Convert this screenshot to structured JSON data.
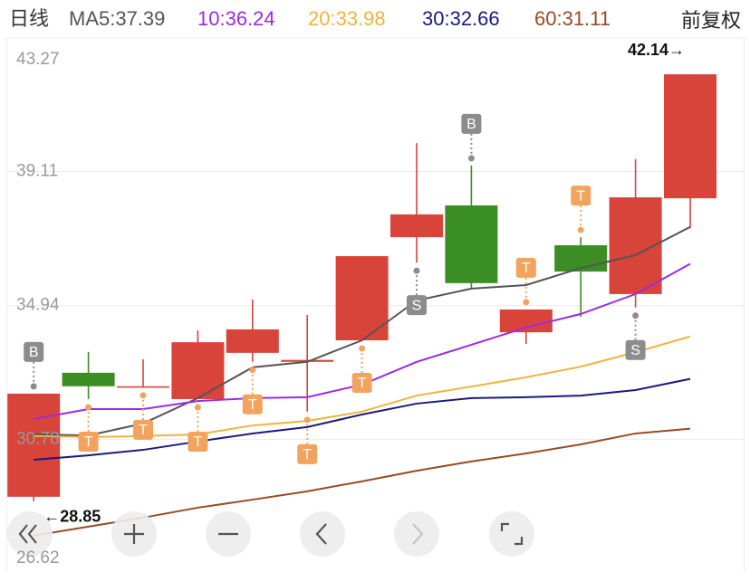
{
  "header": {
    "period": "日线",
    "adjust": "前复权"
  },
  "chart_data": {
    "type": "candlestick",
    "categories": [
      null,
      null,
      null,
      null,
      null,
      null,
      null,
      null,
      null,
      null,
      null,
      null,
      null
    ],
    "open": [
      28.99,
      32.85,
      32.4,
      32.03,
      33.47,
      33.19,
      33.86,
      37.07,
      38.06,
      34.11,
      36.82,
      35.3,
      38.28
    ],
    "high": [
      32.2,
      33.5,
      33.27,
      34.17,
      35.13,
      34.65,
      36.48,
      40.0,
      39.3,
      34.82,
      37.07,
      39.5,
      42.14
    ],
    "low": [
      28.85,
      32.03,
      32.4,
      32.03,
      33.19,
      31.64,
      33.86,
      36.28,
      35.44,
      33.75,
      34.59,
      34.88,
      37.35
    ],
    "close": [
      32.2,
      32.43,
      32.43,
      33.8,
      34.2,
      33.25,
      36.48,
      37.78,
      35.64,
      34.82,
      36.0,
      38.31,
      42.14
    ],
    "up_color": "#d8433a",
    "down_color": "#3b8e24",
    "series": [
      {
        "name": "MA5",
        "label": "MA5:37.39",
        "color": "#555555",
        "values": [
          30.93,
          30.9,
          31.27,
          32.06,
          33.02,
          33.19,
          33.86,
          35.1,
          35.47,
          35.58,
          36.11,
          36.51,
          37.39
        ]
      },
      {
        "name": "10",
        "label": "10:36.24",
        "color": "#9b2be0",
        "values": [
          31.41,
          31.72,
          31.72,
          31.97,
          32.06,
          32.09,
          32.48,
          33.19,
          33.72,
          34.26,
          34.68,
          35.3,
          36.24
        ]
      },
      {
        "name": "20",
        "label": "20:33.98",
        "color": "#f0b43c",
        "values": [
          30.88,
          30.85,
          30.88,
          30.93,
          31.21,
          31.35,
          31.64,
          32.14,
          32.42,
          32.71,
          33.04,
          33.49,
          33.98
        ]
      },
      {
        "name": "30",
        "label": "30:32.66",
        "color": "#1a1a80",
        "values": [
          30.14,
          30.28,
          30.45,
          30.71,
          30.96,
          31.16,
          31.55,
          31.89,
          32.06,
          32.09,
          32.14,
          32.31,
          32.66
        ]
      },
      {
        "name": "60",
        "label": "60:31.11",
        "color": "#9a4a22",
        "values": [
          27.78,
          28.06,
          28.34,
          28.65,
          28.9,
          29.16,
          29.47,
          29.8,
          30.09,
          30.34,
          30.62,
          30.96,
          31.11
        ]
      }
    ],
    "ylim": [
      26.62,
      43.27
    ],
    "yticks": [
      43.27,
      39.11,
      34.94,
      30.78,
      26.62
    ],
    "grid": true,
    "high_label": {
      "value": 42.14,
      "label": "42.14→"
    },
    "low_label": {
      "value": 28.85,
      "label": "←28.85"
    },
    "signals": [
      "B",
      "T",
      "T",
      "T",
      "T",
      "T",
      "T",
      "S",
      "B",
      "T",
      "T",
      "S",
      null
    ],
    "signal_side": [
      "above",
      "below",
      "below",
      "below",
      "below",
      "below",
      "below",
      "below",
      "above",
      "above",
      "above",
      "below",
      null
    ],
    "signal_colors": {
      "B": "#8c8c8c",
      "S": "#8c8c8c",
      "T": "#f2a35e"
    }
  }
}
